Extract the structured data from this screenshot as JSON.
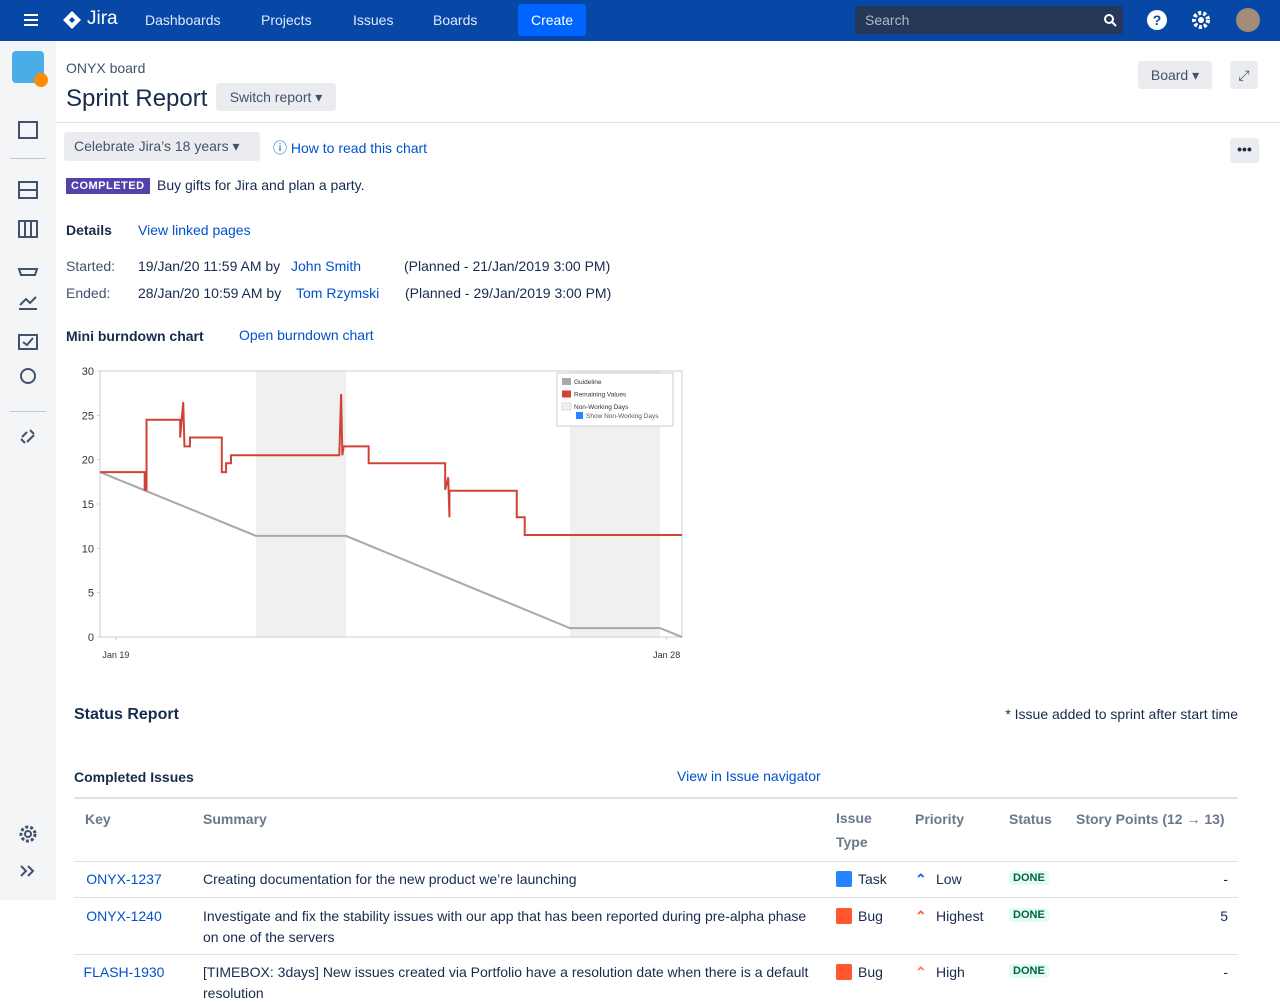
{
  "nav": {
    "logo": "Jira",
    "items": [
      "Dashboards",
      "Projects",
      "Issues",
      "Boards"
    ],
    "create": "Create",
    "search": "Search"
  },
  "header": {
    "board": "ONYX board",
    "title": "Sprint Report",
    "switch": "Switch report",
    "board_button": "Board"
  },
  "sprint": {
    "name": "Celebrate Jira’s 18 years",
    "help": "How to read this chart",
    "badge": "COMPLETED",
    "goal": "Buy gifts for Jira and plan a party."
  },
  "details": {
    "label": "Details",
    "link": "View linked pages",
    "started": {
      "label": "Started:",
      "text": "19/Jan/20 11:59 AM by",
      "user": "John Smith",
      "planned": "(Planned - 21/Jan/2019 3:00 PM)"
    },
    "ended": {
      "label": "Ended:",
      "text": "28/Jan/20 10:59 AM by",
      "user": "Tom Rzymski",
      "planned": "(Planned - 29/Jan/2019 3:00 PM)"
    }
  },
  "mini": {
    "label": "Mini burndown chart",
    "link": "Open burndown chart"
  },
  "chart_data": {
    "type": "line",
    "xlim": [
      18.74,
      28.25
    ],
    "ylim": [
      0,
      30
    ],
    "yticks": [
      0,
      5,
      10,
      15,
      20,
      25,
      30
    ],
    "xticks": [
      {
        "value": 19,
        "label": "Jan 19"
      },
      {
        "value": 28,
        "label": "Jan 28"
      }
    ],
    "non_working": {
      "name": "Non-Working Days",
      "color": "#f0f0f0",
      "ranges": [
        [
          21.29,
          22.76
        ],
        [
          26.42,
          27.89
        ]
      ]
    },
    "legend_toggle": "Show Non-Working Days",
    "series": [
      {
        "name": "Guideline",
        "color": "#a8a8a8",
        "x": [
          18.74,
          21.29,
          22.76,
          26.42,
          27.89,
          28.25
        ],
        "values": [
          18.6,
          11.4,
          11.4,
          1.0,
          1.0,
          0
        ]
      },
      {
        "name": "Remaining Values",
        "color": "#d04437",
        "x": [
          18.74,
          19.47,
          19.47,
          19.5,
          19.5,
          20.05,
          20.05,
          20.1,
          20.12,
          20.21,
          20.21,
          20.73,
          20.73,
          20.8,
          20.8,
          20.88,
          20.88,
          22.65,
          22.68,
          22.7,
          22.72,
          23.13,
          23.13,
          24.38,
          24.38,
          24.43,
          24.45,
          24.45,
          25.55,
          25.55,
          25.68,
          25.68,
          28.25
        ],
        "values": [
          18.6,
          18.6,
          16.6,
          16.6,
          24.5,
          24.5,
          22.5,
          26.5,
          21.5,
          21.5,
          22.5,
          22.5,
          18.6,
          18.6,
          19.6,
          19.6,
          20.5,
          20.5,
          27.4,
          20.5,
          21.5,
          21.5,
          19.6,
          19.6,
          16.6,
          18.0,
          13.5,
          16.5,
          16.5,
          13.5,
          13.5,
          11.5,
          11.5
        ]
      }
    ]
  },
  "status": {
    "title": "Status Report",
    "note": "* Issue added to sprint after start time",
    "completed": "Completed Issues",
    "navigator": "View in Issue navigator"
  },
  "table": {
    "headers": [
      "Key",
      "Summary",
      "Issue Type",
      "Priority",
      "Status",
      "Story Points (12 → 13)"
    ],
    "rows": [
      [
        "ONYX-1237",
        "Creating documentation for the new product we’re launching",
        "Task",
        "Low",
        "DONE",
        "-"
      ],
      [
        "ONYX-1240",
        "Investigate and fix the stability issues with our app that has been reported during pre-alpha phase on one of the servers",
        "Bug",
        "Highest",
        "DONE",
        "5"
      ],
      [
        "FLASH-1930",
        "[TIMEBOX: 3days] New issues created via Portfolio have a resolution date when there is a default resolution",
        "Bug",
        "High",
        "DONE",
        "-"
      ]
    ]
  }
}
